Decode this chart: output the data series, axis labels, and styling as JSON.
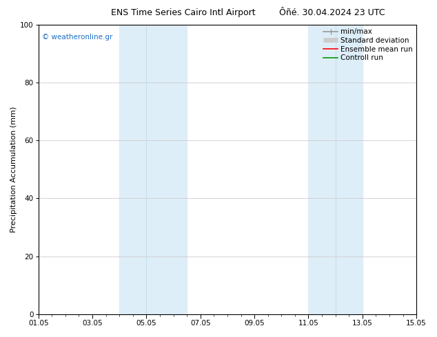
{
  "title_left": "ENS Time Series Cairo Intl Airport",
  "title_right": "Ôñé. 30.04.2024 23 UTC",
  "ylabel": "Precipitation Accumulation (mm)",
  "ylim": [
    0,
    100
  ],
  "yticks": [
    0,
    20,
    40,
    60,
    80,
    100
  ],
  "xlim_start": 0,
  "xlim_end": 14,
  "xtick_positions": [
    0,
    2,
    4,
    6,
    8,
    10,
    12,
    14
  ],
  "xtick_labels": [
    "01.05",
    "03.05",
    "05.05",
    "07.05",
    "09.05",
    "11.05",
    "13.05",
    "15.05"
  ],
  "shaded_regions": [
    {
      "x_start": 3.0,
      "x_end": 4.0,
      "color": "#deeef8"
    },
    {
      "x_start": 4.0,
      "x_end": 5.5,
      "color": "#deeef8"
    },
    {
      "x_start": 10.0,
      "x_end": 11.0,
      "color": "#deeef8"
    },
    {
      "x_start": 11.0,
      "x_end": 12.0,
      "color": "#deeef8"
    }
  ],
  "shaded_borders": [
    {
      "x": 3.0,
      "color": "#b0cfe0"
    },
    {
      "x": 4.0,
      "color": "#b0cfe0"
    },
    {
      "x": 5.5,
      "color": "#b0cfe0"
    },
    {
      "x": 10.0,
      "color": "#b0cfe0"
    },
    {
      "x": 11.0,
      "color": "#b0cfe0"
    },
    {
      "x": 12.0,
      "color": "#b0cfe0"
    }
  ],
  "legend_entries": [
    {
      "label": "min/max",
      "color": "#999999",
      "lw": 1.2
    },
    {
      "label": "Standard deviation",
      "color": "#cccccc",
      "lw": 5
    },
    {
      "label": "Ensemble mean run",
      "color": "#ff0000",
      "lw": 1.2
    },
    {
      "label": "Controll run",
      "color": "#009900",
      "lw": 1.2
    }
  ],
  "watermark": "© weatheronline.gr",
  "watermark_color": "#1a6fc4",
  "background_color": "#ffffff",
  "plot_bg_color": "#ffffff",
  "grid_color": "#cccccc",
  "title_fontsize": 9,
  "axis_label_fontsize": 8,
  "tick_fontsize": 7.5,
  "legend_fontsize": 7.5,
  "watermark_fontsize": 7.5
}
